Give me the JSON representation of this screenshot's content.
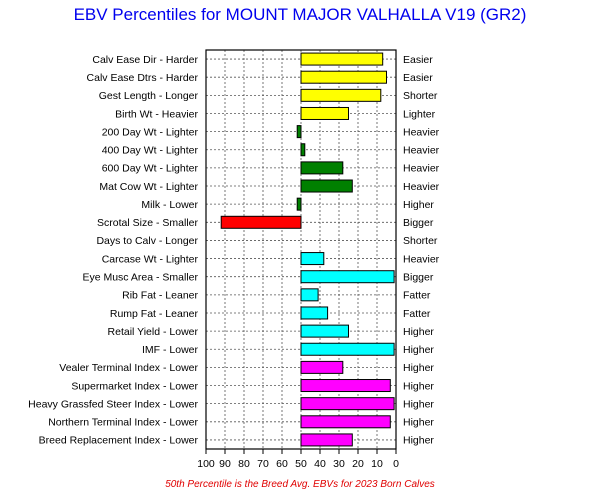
{
  "chart_data": {
    "type": "bar",
    "orientation": "horizontal",
    "title": "EBV Percentiles for MOUNT MAJOR VALHALLA V19 (GR2)",
    "footnote": "50th Percentile is the Breed Avg. EBVs for 2023 Born Calves",
    "xlim": [
      100,
      0
    ],
    "baseline": 50,
    "x_ticks": [
      "100",
      "90",
      "80",
      "70",
      "60",
      "50",
      "40",
      "30",
      "20",
      "10",
      "0"
    ],
    "grid": true,
    "colors": {
      "yellow": "#ffff00",
      "green": "#008000",
      "red": "#ff0000",
      "cyan": "#00ffff",
      "magenta": "#ff00ff"
    },
    "traits": [
      {
        "left": "Calv Ease Dir - Harder",
        "right": "Easier",
        "value": 7,
        "color": "yellow"
      },
      {
        "left": "Calv Ease Dtrs - Harder",
        "right": "Easier",
        "value": 5,
        "color": "yellow"
      },
      {
        "left": "Gest Length - Longer",
        "right": "Shorter",
        "value": 8,
        "color": "yellow"
      },
      {
        "left": "Birth Wt - Heavier",
        "right": "Lighter",
        "value": 25,
        "color": "yellow"
      },
      {
        "left": "200 Day Wt - Lighter",
        "right": "Heavier",
        "value": 52,
        "color": "green"
      },
      {
        "left": "400 Day Wt - Lighter",
        "right": "Heavier",
        "value": 48,
        "color": "green"
      },
      {
        "left": "600 Day Wt - Lighter",
        "right": "Heavier",
        "value": 28,
        "color": "green"
      },
      {
        "left": "Mat Cow Wt - Lighter",
        "right": "Heavier",
        "value": 23,
        "color": "green"
      },
      {
        "left": "Milk - Lower",
        "right": "Higher",
        "value": 52,
        "color": "green"
      },
      {
        "left": "Scrotal Size - Smaller",
        "right": "Bigger",
        "value": 92,
        "color": "red"
      },
      {
        "left": "Days to Calv - Longer",
        "right": "Shorter",
        "value": null,
        "color": "red"
      },
      {
        "left": "Carcase Wt - Lighter",
        "right": "Heavier",
        "value": 38,
        "color": "cyan"
      },
      {
        "left": "Eye Musc Area - Smaller",
        "right": "Bigger",
        "value": 1,
        "color": "cyan"
      },
      {
        "left": "Rib Fat - Leaner",
        "right": "Fatter",
        "value": 41,
        "color": "cyan"
      },
      {
        "left": "Rump Fat - Leaner",
        "right": "Fatter",
        "value": 36,
        "color": "cyan"
      },
      {
        "left": "Retail Yield - Lower",
        "right": "Higher",
        "value": 25,
        "color": "cyan"
      },
      {
        "left": "IMF - Lower",
        "right": "Higher",
        "value": 1,
        "color": "cyan"
      },
      {
        "left": "Vealer Terminal Index - Lower",
        "right": "Higher",
        "value": 28,
        "color": "magenta"
      },
      {
        "left": "Supermarket Index - Lower",
        "right": "Higher",
        "value": 3,
        "color": "magenta"
      },
      {
        "left": "Heavy Grassfed Steer Index - Lower",
        "right": "Higher",
        "value": 1,
        "color": "magenta"
      },
      {
        "left": "Northern Terminal Index - Lower",
        "right": "Higher",
        "value": 3,
        "color": "magenta"
      },
      {
        "left": "Breed Replacement Index - Lower",
        "right": "Higher",
        "value": 23,
        "color": "magenta"
      }
    ]
  }
}
